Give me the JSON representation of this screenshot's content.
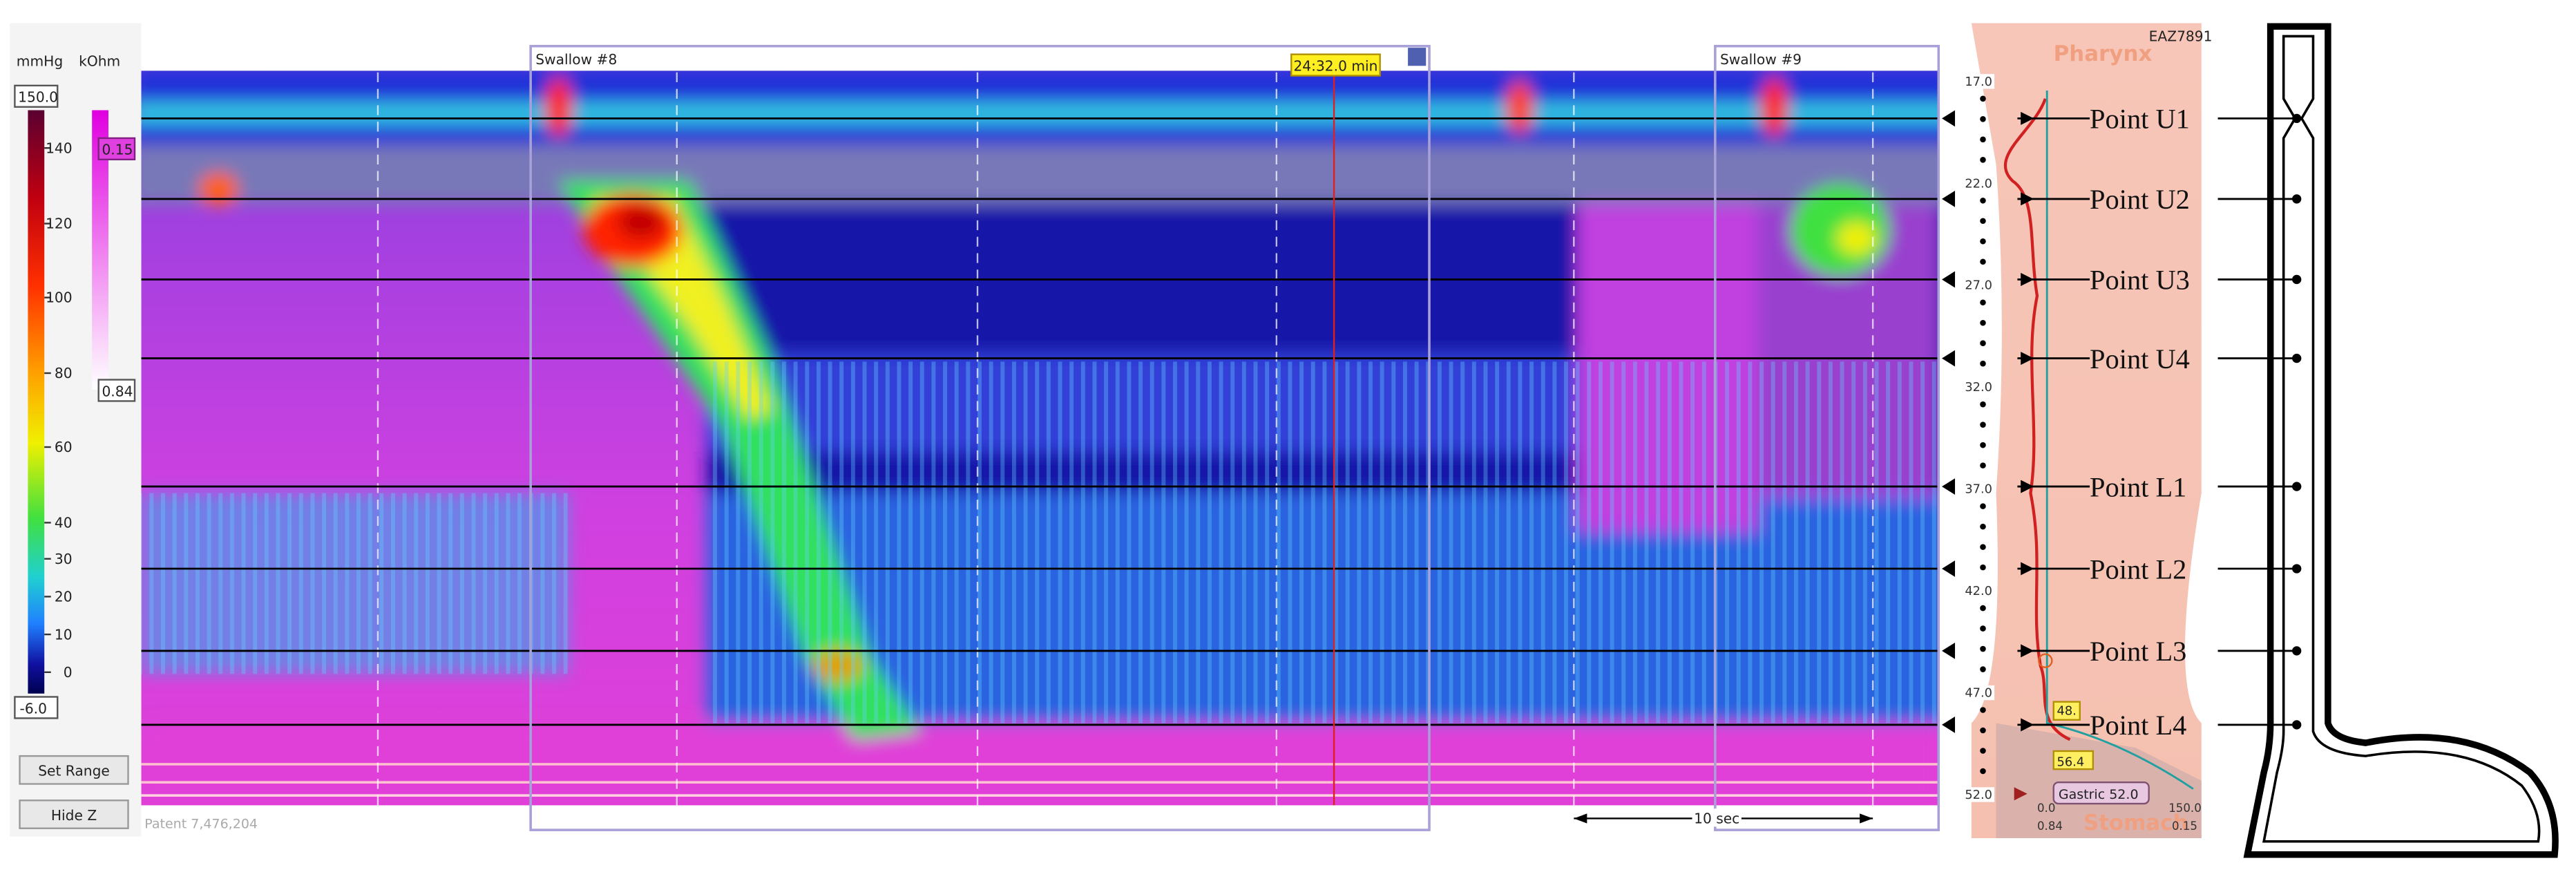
{
  "left_panel": {
    "pressure_unit": "mmHg",
    "impedance_unit": "kOhm",
    "pressure_max": "150.0",
    "pressure_min": "-6.0",
    "pressure_ticks": [
      "140",
      "120",
      "100",
      "80",
      "60",
      "40",
      "30",
      "20",
      "10",
      "0"
    ],
    "impedance_max": "0.15",
    "impedance_min": "0.84",
    "buttons": [
      "Set Range",
      "Hide Z"
    ]
  },
  "plot": {
    "swallows": [
      "Swallow #8",
      "Swallow #9"
    ],
    "cursor_time": "24:32.0 min",
    "scale_bar": "10 sec",
    "footer": "Patent 7,476,204"
  },
  "sensor_strip": {
    "id": "EAZ7891",
    "top": "Pharynx",
    "bottom": "Stomach",
    "depths": [
      "17.0",
      "22.0",
      "27.0",
      "32.0",
      "37.0",
      "42.0",
      "47.0",
      "52.0"
    ],
    "gastric": "Gastric 52.0",
    "markers": [
      "48.",
      "56.4"
    ],
    "axis_labels": [
      "0.0",
      "0.84",
      "150.0",
      "0.15"
    ]
  },
  "points": [
    "Point U1",
    "Point U2",
    "Point U3",
    "Point U4",
    "Point L1",
    "Point L2",
    "Point L3",
    "Point L4"
  ]
}
